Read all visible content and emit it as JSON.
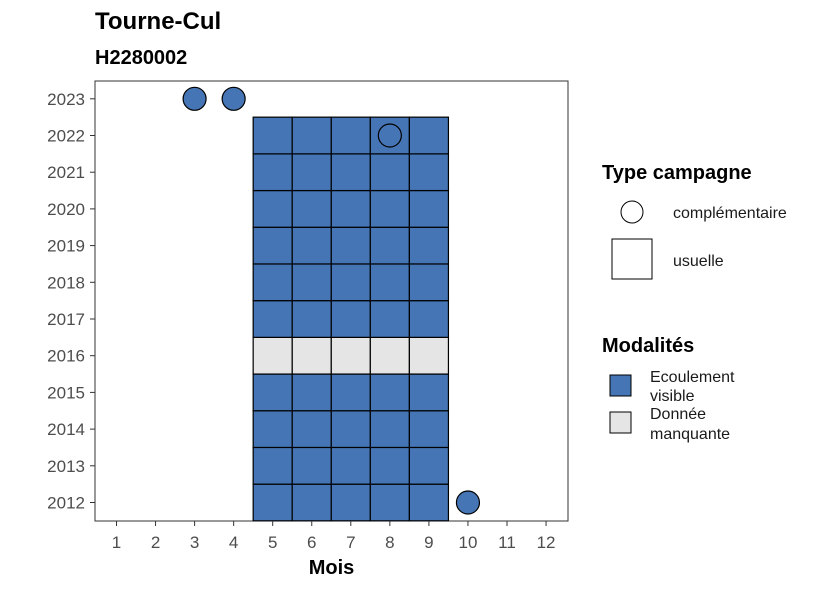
{
  "chart_data": {
    "type": "heatmap",
    "title": "Tourne-Cul",
    "subtitle": "H2280002",
    "xlabel": "Mois",
    "ylabel": "",
    "x_categories": [
      "1",
      "2",
      "3",
      "4",
      "5",
      "6",
      "7",
      "8",
      "9",
      "10",
      "11",
      "12"
    ],
    "y_categories": [
      "2012",
      "2013",
      "2014",
      "2015",
      "2016",
      "2017",
      "2018",
      "2019",
      "2020",
      "2021",
      "2022",
      "2023"
    ],
    "colors": {
      "ecoulement_visible": "#4575b4",
      "donnee_manquante": "#e5e5e5"
    },
    "tiles": {
      "campaign_type": "usuelle",
      "months": [
        5,
        6,
        7,
        8,
        9
      ],
      "rows": [
        {
          "year": "2012",
          "modalite": "Ecoulement visible"
        },
        {
          "year": "2013",
          "modalite": "Ecoulement visible"
        },
        {
          "year": "2014",
          "modalite": "Ecoulement visible"
        },
        {
          "year": "2015",
          "modalite": "Ecoulement visible"
        },
        {
          "year": "2016",
          "modalite": "Donnée manquante"
        },
        {
          "year": "2017",
          "modalite": "Ecoulement visible"
        },
        {
          "year": "2018",
          "modalite": "Ecoulement visible"
        },
        {
          "year": "2019",
          "modalite": "Ecoulement visible"
        },
        {
          "year": "2020",
          "modalite": "Ecoulement visible"
        },
        {
          "year": "2021",
          "modalite": "Ecoulement visible"
        },
        {
          "year": "2022",
          "modalite": "Ecoulement visible"
        }
      ]
    },
    "points": [
      {
        "month": 3,
        "year": "2023",
        "modalite": "Ecoulement visible",
        "campaign_type": "complémentaire"
      },
      {
        "month": 4,
        "year": "2023",
        "modalite": "Ecoulement visible",
        "campaign_type": "complémentaire"
      },
      {
        "month": 8,
        "year": "2022",
        "modalite": "Ecoulement visible",
        "campaign_type": "complémentaire"
      },
      {
        "month": 10,
        "year": "2012",
        "modalite": "Ecoulement visible",
        "campaign_type": "complémentaire"
      }
    ],
    "legends": [
      {
        "title": "Type campagne",
        "entries": [
          {
            "label": "complémentaire",
            "shape": "circle"
          },
          {
            "label": "usuelle",
            "shape": "square"
          }
        ]
      },
      {
        "title": "Modalités",
        "entries": [
          {
            "label_lines": [
              "Ecoulement",
              "visible"
            ],
            "color": "#4575b4"
          },
          {
            "label_lines": [
              "Donnée",
              "manquante"
            ],
            "color": "#e5e5e5"
          }
        ]
      }
    ],
    "legend_position": "right",
    "grid": false
  }
}
